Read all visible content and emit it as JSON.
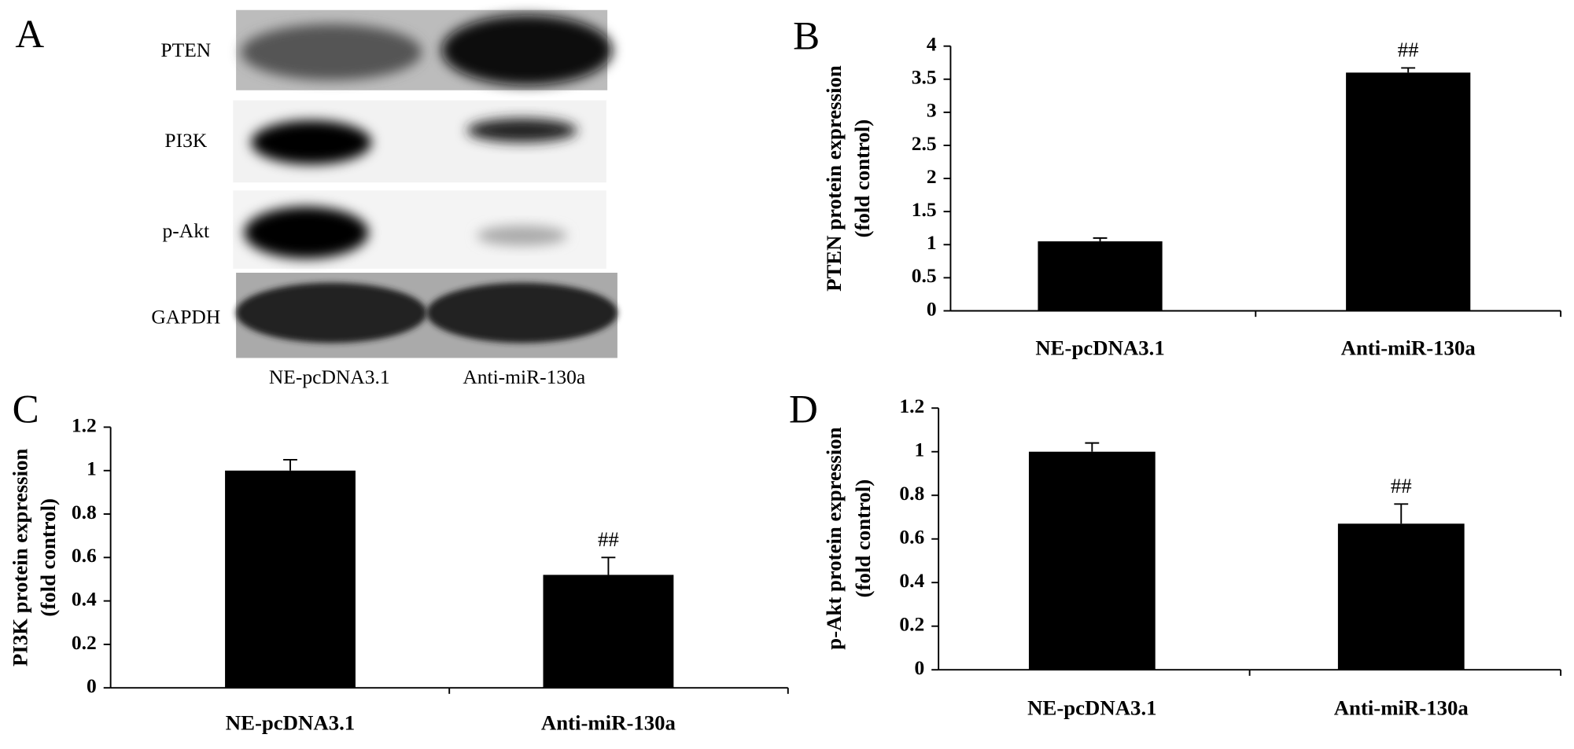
{
  "blot": {
    "label": "A",
    "rows": [
      "PTEN",
      "PI3K",
      "p-Akt",
      "GAPDH"
    ],
    "columns": [
      "NE-pcDNA3.1",
      "Anti-miR-130a"
    ]
  },
  "chart_data": [
    {
      "type": "bar",
      "label": "B",
      "ylabel": [
        "PTEN protein expression",
        "(fold control)"
      ],
      "categories": [
        "NE-pcDNA3.1",
        "Anti-miR-130a"
      ],
      "values": [
        1.05,
        3.6
      ],
      "errors": [
        0.05,
        0.07
      ],
      "value_annotations": [
        null,
        "##"
      ],
      "color": "#000000",
      "ylim": [
        0,
        4
      ],
      "yticks": [
        0,
        0.5,
        1,
        1.5,
        2,
        2.5,
        3,
        3.5,
        4
      ]
    },
    {
      "type": "bar",
      "label": "C",
      "ylabel": [
        "PI3K protein expression",
        "(fold control)"
      ],
      "categories": [
        "NE-pcDNA3.1",
        "Anti-miR-130a"
      ],
      "values": [
        1.0,
        0.52
      ],
      "errors": [
        0.05,
        0.08
      ],
      "value_annotations": [
        null,
        "##"
      ],
      "color": "#000000",
      "ylim": [
        0,
        1.2
      ],
      "yticks": [
        0,
        0.2,
        0.4,
        0.6,
        0.8,
        1,
        1.2
      ]
    },
    {
      "type": "bar",
      "label": "D",
      "ylabel": [
        "p-Akt protein expression",
        "(fold control)"
      ],
      "categories": [
        "NE-pcDNA3.1",
        "Anti-miR-130a"
      ],
      "values": [
        1.0,
        0.67
      ],
      "errors": [
        0.04,
        0.09
      ],
      "value_annotations": [
        null,
        "##"
      ],
      "color": "#000000",
      "ylim": [
        0,
        1.2
      ],
      "yticks": [
        0,
        0.2,
        0.4,
        0.6,
        0.8,
        1,
        1.2
      ]
    }
  ]
}
